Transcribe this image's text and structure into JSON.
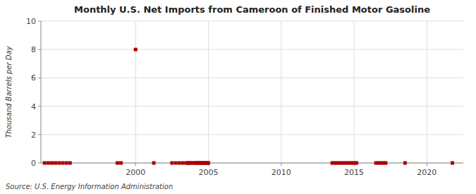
{
  "chart_data": {
    "type": "scatter",
    "title": "Monthly U.S. Net Imports from Cameroon of Finished Motor Gasoline",
    "y_label": "Thousand Barrels per Day",
    "source": "Source: U.S. Energy Information Administration",
    "x": [
      1993.75,
      1994.0,
      1994.25,
      1994.5,
      1994.75,
      1995.0,
      1995.25,
      1995.5,
      1998.75,
      1999.0,
      2000.0,
      2001.25,
      2002.5,
      2002.75,
      2003.0,
      2003.25,
      2003.5,
      2003.58,
      2003.67,
      2003.75,
      2003.83,
      2004.0,
      2004.08,
      2004.17,
      2004.25,
      2004.33,
      2004.42,
      2004.5,
      2004.58,
      2004.67,
      2004.75,
      2004.83,
      2004.92,
      2005.0,
      2013.5,
      2013.67,
      2013.83,
      2014.0,
      2014.17,
      2014.33,
      2014.5,
      2014.67,
      2014.83,
      2015.0,
      2015.17,
      2016.5,
      2016.67,
      2016.83,
      2017.0,
      2017.17,
      2018.5,
      2021.75
    ],
    "values": [
      0,
      0,
      0,
      0,
      0,
      0,
      0,
      0,
      0,
      0,
      8,
      0,
      0,
      0,
      0,
      0,
      0,
      0,
      0,
      0,
      0,
      0,
      0,
      0,
      0,
      0,
      0,
      0,
      0,
      0,
      0,
      0,
      0,
      0,
      0,
      0,
      0,
      0,
      0,
      0,
      0,
      0,
      0,
      0,
      0,
      0,
      0,
      0,
      0,
      0,
      0,
      0
    ],
    "color": "#aa0000",
    "marker": "square",
    "xlim": [
      1993.5,
      2022.5
    ],
    "xticks": [
      2000,
      2005,
      2010,
      2015,
      2020
    ],
    "ylim": [
      0,
      10
    ],
    "yticks": [
      0,
      2,
      4,
      6,
      8,
      10
    ],
    "grid": true
  }
}
